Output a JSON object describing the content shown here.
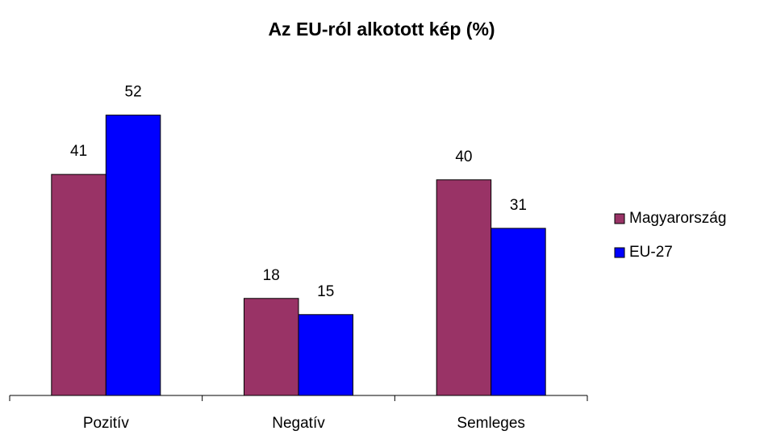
{
  "chart_data": {
    "type": "bar",
    "title": "Az EU-ról alkotott kép (%)",
    "categories": [
      "Pozitív",
      "Negatív",
      "Semleges"
    ],
    "series": [
      {
        "name": "Magyarország",
        "color": "#993366",
        "values": [
          41,
          18,
          40
        ]
      },
      {
        "name": "EU-27",
        "color": "#0000ff",
        "values": [
          52,
          15,
          31
        ]
      }
    ],
    "legend": "right"
  }
}
